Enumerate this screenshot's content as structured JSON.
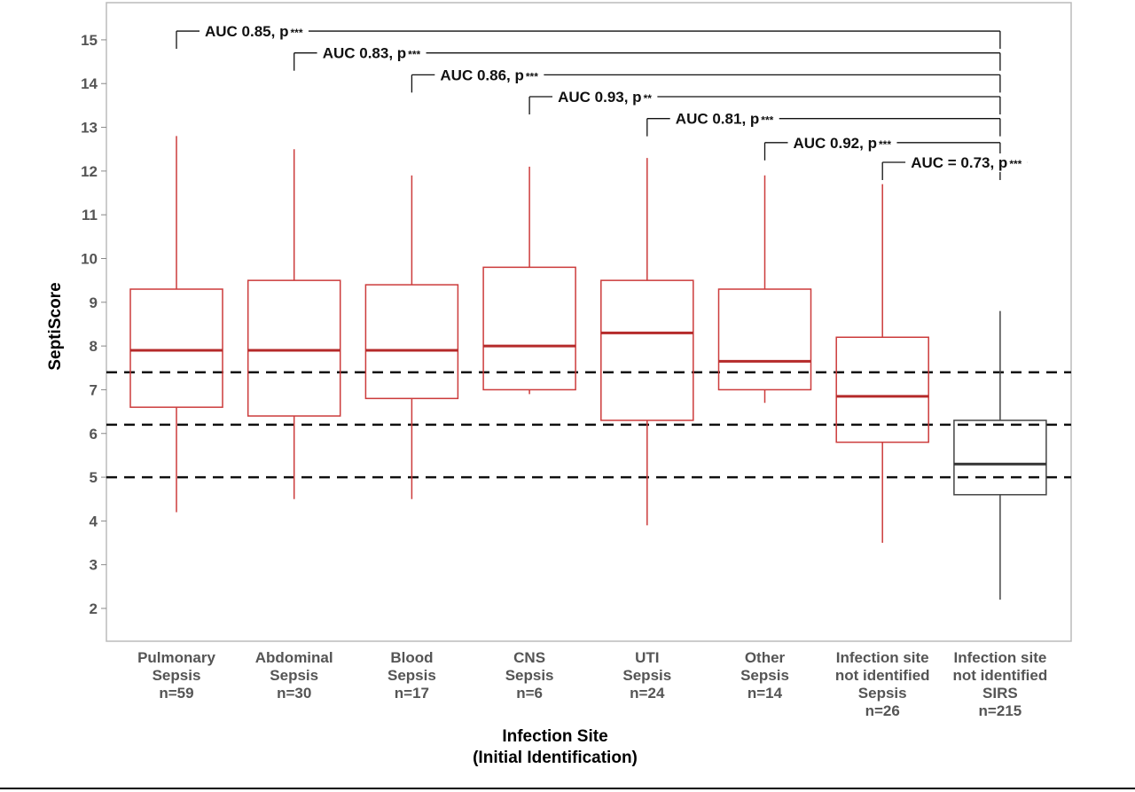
{
  "chart_data": {
    "type": "box",
    "xlabel": [
      "Infection Site",
      "(Initial Identification)"
    ],
    "ylabel": "SeptiScore",
    "ylim": [
      1.25,
      15.85
    ],
    "yticks": [
      2,
      3,
      4,
      5,
      6,
      7,
      8,
      9,
      10,
      11,
      12,
      13,
      14,
      15
    ],
    "grid": false,
    "reference_lines": [
      5.0,
      6.2,
      7.4
    ],
    "colors": {
      "sepsis": "#cc3b3b",
      "sirs": "#444444",
      "reference": "#111111",
      "frame": "#bbbbbb"
    },
    "categories": [
      {
        "label": [
          "Pulmonary",
          "Sepsis",
          "n=59"
        ],
        "group": "sepsis",
        "min": 4.2,
        "q1": 6.6,
        "median": 7.9,
        "q3": 9.3,
        "max": 12.8
      },
      {
        "label": [
          "Abdominal",
          "Sepsis",
          "n=30"
        ],
        "group": "sepsis",
        "min": 4.5,
        "q1": 6.4,
        "median": 7.9,
        "q3": 9.5,
        "max": 12.5
      },
      {
        "label": [
          "Blood",
          "Sepsis",
          "n=17"
        ],
        "group": "sepsis",
        "min": 4.5,
        "q1": 6.8,
        "median": 7.9,
        "q3": 9.4,
        "max": 11.9
      },
      {
        "label": [
          "CNS",
          "Sepsis",
          "n=6"
        ],
        "group": "sepsis",
        "min": 6.9,
        "q1": 7.0,
        "median": 8.0,
        "q3": 9.8,
        "max": 12.1
      },
      {
        "label": [
          "UTI",
          "Sepsis",
          "n=24"
        ],
        "group": "sepsis",
        "min": 3.9,
        "q1": 6.3,
        "median": 8.3,
        "q3": 9.5,
        "max": 12.3
      },
      {
        "label": [
          "Other",
          "Sepsis",
          "n=14"
        ],
        "group": "sepsis",
        "min": 6.7,
        "q1": 7.0,
        "median": 7.65,
        "q3": 9.3,
        "max": 11.9
      },
      {
        "label": [
          "Infection site",
          "not identified",
          "Sepsis",
          "n=26"
        ],
        "group": "sepsis",
        "min": 3.5,
        "q1": 5.8,
        "median": 6.85,
        "q3": 8.2,
        "max": 11.7
      },
      {
        "label": [
          "Infection site",
          "not identified",
          "SIRS",
          "n=215"
        ],
        "group": "sirs",
        "min": 2.2,
        "q1": 4.6,
        "median": 5.3,
        "q3": 6.3,
        "max": 8.8
      }
    ],
    "annotations": [
      {
        "from": 0,
        "to": 7,
        "level": 15.2,
        "text": "AUC 0.85, p",
        "stars": "***"
      },
      {
        "from": 1,
        "to": 7,
        "level": 14.7,
        "text": "AUC 0.83, p",
        "stars": "***"
      },
      {
        "from": 2,
        "to": 7,
        "level": 14.2,
        "text": "AUC 0.86, p",
        "stars": "***"
      },
      {
        "from": 3,
        "to": 7,
        "level": 13.7,
        "text": "AUC 0.93, p",
        "stars": "**"
      },
      {
        "from": 4,
        "to": 7,
        "level": 13.2,
        "text": "AUC 0.81, p",
        "stars": "***"
      },
      {
        "from": 5,
        "to": 7,
        "level": 12.65,
        "text": "AUC 0.92, p",
        "stars": "***"
      },
      {
        "from": 6,
        "to": 7,
        "level": 12.2,
        "text": "AUC = 0.73, p",
        "stars": "***"
      }
    ]
  }
}
